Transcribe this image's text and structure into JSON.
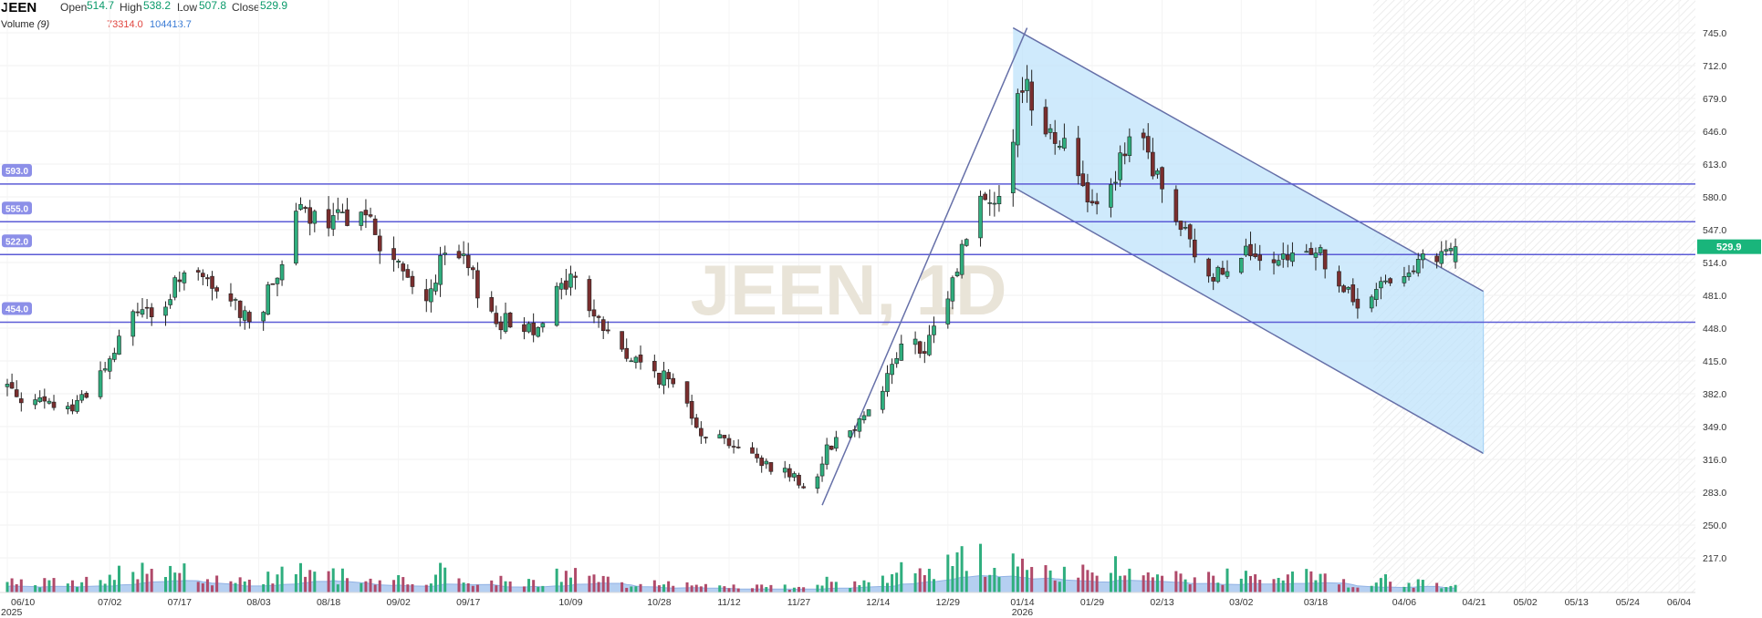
{
  "header": {
    "symbol": "JEEN",
    "open_label": "Open",
    "open_value": "514.7",
    "high_label": "High",
    "high_value": "538.2",
    "low_label": "Low",
    "low_value": "507.8",
    "close_label": "Close",
    "close_value": "529.9",
    "volume_label": "Volume",
    "volume_period": "(9)",
    "volume_value": "73314.0",
    "volume_ma_value": "104413.7"
  },
  "watermark": "JEEN, 1D",
  "colors": {
    "up": "#2fae7e",
    "down": "#7a2e2e",
    "line": "#5b5bd6",
    "channel_fill": "#bfe3fb",
    "channel_edge": "#6670a8",
    "volume_area": "#a9c7ef",
    "price_badge": "#19b57b",
    "level_badge": "#8c8fe8"
  },
  "chart_data": {
    "type": "candlestick",
    "symbol": "JEEN",
    "interval": "1D",
    "y_ticks": [
      745.0,
      712.0,
      679.0,
      646.0,
      613.0,
      580.0,
      547.0,
      514.0,
      481.0,
      448.0,
      415.0,
      382.0,
      349.0,
      316.0,
      283.0,
      250.0,
      217.0
    ],
    "y_tick_labels": [
      "745.0",
      "712.0",
      "679.0",
      "646.0",
      "613.0",
      "580.0",
      "547.0",
      "514.0",
      "481.0",
      "448.0",
      "415.0",
      "382.0",
      "349.0",
      "316.0",
      "283.0",
      "250.0",
      "217.0"
    ],
    "x_tick_labels": [
      {
        "date": "2025-06-10",
        "label": "06/10",
        "sub": "2025"
      },
      {
        "date": "2025-07-02",
        "label": "07/02"
      },
      {
        "date": "2025-07-17",
        "label": "07/17"
      },
      {
        "date": "2025-08-03",
        "label": "08/03"
      },
      {
        "date": "2025-08-18",
        "label": "08/18"
      },
      {
        "date": "2025-09-02",
        "label": "09/02"
      },
      {
        "date": "2025-09-17",
        "label": "09/17"
      },
      {
        "date": "2025-10-09",
        "label": "10/09"
      },
      {
        "date": "2025-10-28",
        "label": "10/28"
      },
      {
        "date": "2025-11-12",
        "label": "11/12"
      },
      {
        "date": "2025-11-27",
        "label": "11/27"
      },
      {
        "date": "2025-12-14",
        "label": "12/14"
      },
      {
        "date": "2025-12-29",
        "label": "12/29"
      },
      {
        "date": "2026-01-14",
        "label": "01/14",
        "sub": "2026"
      },
      {
        "date": "2026-01-29",
        "label": "01/29"
      },
      {
        "date": "2026-02-13",
        "label": "02/13"
      },
      {
        "date": "2026-03-02",
        "label": "03/02"
      },
      {
        "date": "2026-03-18",
        "label": "03/18"
      },
      {
        "date": "2026-04-06",
        "label": "04/06"
      },
      {
        "date": "2026-04-21",
        "label": "04/21"
      },
      {
        "date": "2026-05-02",
        "label": "05/02"
      },
      {
        "date": "2026-05-13",
        "label": "05/13"
      },
      {
        "date": "2026-05-24",
        "label": "05/24"
      },
      {
        "date": "2026-06-04",
        "label": "06/04"
      }
    ],
    "horizontal_levels": [
      {
        "value": 593.0,
        "label": "593.0"
      },
      {
        "value": 555.0,
        "label": "555.0"
      },
      {
        "value": 522.0,
        "label": "522.0"
      },
      {
        "value": 454.0,
        "label": "454.0"
      }
    ],
    "last_price": {
      "value": 529.9,
      "label": "529.9"
    },
    "trend_lines": [
      {
        "from": {
          "date": "2025-12-02",
          "value": 270
        },
        "to": {
          "date": "2026-01-15",
          "value": 750
        }
      }
    ],
    "channel": {
      "upper": [
        {
          "date": "2026-01-12",
          "value": 750
        },
        {
          "date": "2026-04-23",
          "value": 485
        }
      ],
      "lower": [
        {
          "date": "2026-01-12",
          "value": 590
        },
        {
          "date": "2026-04-23",
          "value": 322
        }
      ]
    },
    "volume_scale": [
      0,
      270000
    ],
    "anchors": [
      {
        "date": "2025-06-10",
        "price": 390,
        "vol": 45000
      },
      {
        "date": "2025-06-16",
        "price": 372,
        "vol": 55000
      },
      {
        "date": "2025-06-24",
        "price": 368,
        "vol": 50000
      },
      {
        "date": "2025-07-02",
        "price": 415,
        "vol": 70000
      },
      {
        "date": "2025-07-08",
        "price": 470,
        "vol": 150000
      },
      {
        "date": "2025-07-14",
        "price": 460,
        "vol": 90000
      },
      {
        "date": "2025-07-17",
        "price": 505,
        "vol": 140000
      },
      {
        "date": "2025-07-23",
        "price": 490,
        "vol": 70000
      },
      {
        "date": "2025-07-29",
        "price": 470,
        "vol": 60000
      },
      {
        "date": "2025-08-03",
        "price": 455,
        "vol": 60000
      },
      {
        "date": "2025-08-08",
        "price": 520,
        "vol": 130000
      },
      {
        "date": "2025-08-12",
        "price": 565,
        "vol": 120000
      },
      {
        "date": "2025-08-18",
        "price": 548,
        "vol": 90000
      },
      {
        "date": "2025-08-25",
        "price": 575,
        "vol": 70000
      },
      {
        "date": "2025-08-29",
        "price": 530,
        "vol": 60000
      },
      {
        "date": "2025-09-02",
        "price": 510,
        "vol": 60000
      },
      {
        "date": "2025-09-07",
        "price": 470,
        "vol": 60000
      },
      {
        "date": "2025-09-13",
        "price": 530,
        "vol": 120000
      },
      {
        "date": "2025-09-17",
        "price": 505,
        "vol": 70000
      },
      {
        "date": "2025-09-23",
        "price": 455,
        "vol": 60000
      },
      {
        "date": "2025-10-01",
        "price": 450,
        "vol": 60000
      },
      {
        "date": "2025-10-09",
        "price": 500,
        "vol": 90000
      },
      {
        "date": "2025-10-15",
        "price": 455,
        "vol": 60000
      },
      {
        "date": "2025-10-21",
        "price": 420,
        "vol": 50000
      },
      {
        "date": "2025-10-28",
        "price": 400,
        "vol": 50000
      },
      {
        "date": "2025-11-02",
        "price": 385,
        "vol": 40000
      },
      {
        "date": "2025-11-06",
        "price": 345,
        "vol": 40000
      },
      {
        "date": "2025-11-12",
        "price": 335,
        "vol": 35000
      },
      {
        "date": "2025-11-18",
        "price": 315,
        "vol": 30000
      },
      {
        "date": "2025-11-24",
        "price": 305,
        "vol": 30000
      },
      {
        "date": "2025-11-30",
        "price": 285,
        "vol": 35000
      },
      {
        "date": "2025-12-03",
        "price": 330,
        "vol": 60000
      },
      {
        "date": "2025-12-08",
        "price": 345,
        "vol": 45000
      },
      {
        "date": "2025-12-14",
        "price": 380,
        "vol": 60000
      },
      {
        "date": "2025-12-20",
        "price": 440,
        "vol": 120000
      },
      {
        "date": "2025-12-24",
        "price": 420,
        "vol": 80000
      },
      {
        "date": "2025-12-29",
        "price": 480,
        "vol": 130000
      },
      {
        "date": "2026-01-04",
        "price": 575,
        "vol": 200000
      },
      {
        "date": "2026-01-08",
        "price": 580,
        "vol": 110000
      },
      {
        "date": "2026-01-11",
        "price": 615,
        "vol": 130000
      },
      {
        "date": "2026-01-14",
        "price": 700,
        "vol": 170000
      },
      {
        "date": "2026-01-18",
        "price": 660,
        "vol": 130000
      },
      {
        "date": "2026-01-24",
        "price": 625,
        "vol": 100000
      },
      {
        "date": "2026-01-29",
        "price": 575,
        "vol": 90000
      },
      {
        "date": "2026-02-03",
        "price": 605,
        "vol": 120000
      },
      {
        "date": "2026-02-08",
        "price": 645,
        "vol": 130000
      },
      {
        "date": "2026-02-13",
        "price": 585,
        "vol": 90000
      },
      {
        "date": "2026-02-18",
        "price": 540,
        "vol": 70000
      },
      {
        "date": "2026-02-23",
        "price": 495,
        "vol": 70000
      },
      {
        "date": "2026-03-02",
        "price": 530,
        "vol": 100000
      },
      {
        "date": "2026-03-08",
        "price": 500,
        "vol": 60000
      },
      {
        "date": "2026-03-13",
        "price": 520,
        "vol": 90000
      },
      {
        "date": "2026-03-18",
        "price": 530,
        "vol": 70000
      },
      {
        "date": "2026-03-23",
        "price": 490,
        "vol": 60000
      },
      {
        "date": "2026-03-28",
        "price": 465,
        "vol": 50000
      },
      {
        "date": "2026-04-02",
        "price": 495,
        "vol": 60000
      },
      {
        "date": "2026-04-06",
        "price": 510,
        "vol": 55000
      },
      {
        "date": "2026-04-12",
        "price": 512,
        "vol": 45000
      },
      {
        "date": "2026-04-17",
        "price": 529.9,
        "vol": 40000
      }
    ],
    "ohlc_last": {
      "open": 514.7,
      "high": 538.2,
      "low": 507.8,
      "close": 529.9
    }
  }
}
